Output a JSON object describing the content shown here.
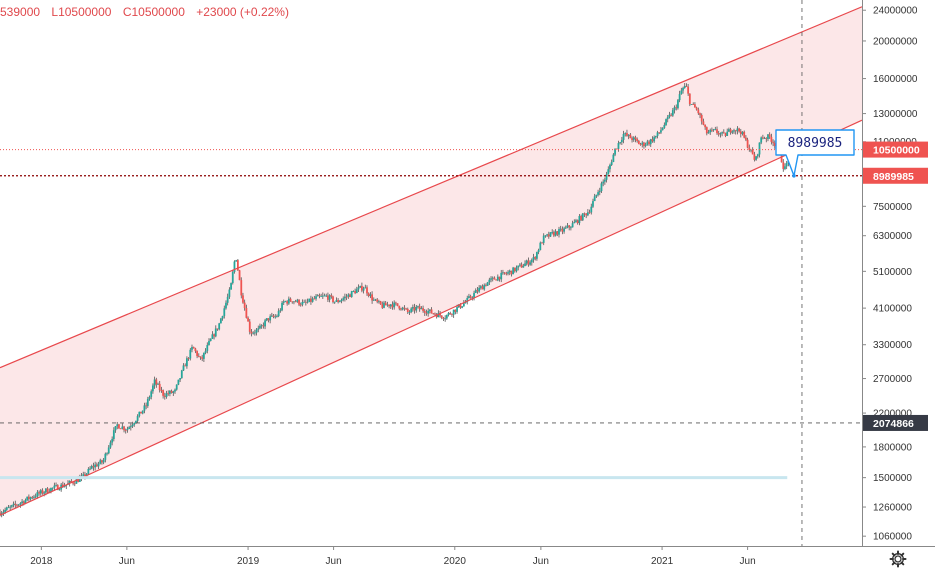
{
  "legend": {
    "open": "539000",
    "low": "L10500000",
    "close": "C10500000",
    "change": "+23000 (+0.22%)"
  },
  "callout": {
    "text": "8989985"
  },
  "icons": {
    "settings": "gear-icon"
  },
  "colors": {
    "channel_line": "#e8484c",
    "channel_fill": "#fbe3e4",
    "up_candle": "#26a69a",
    "down_candle": "#ef5350",
    "wick": "#555555",
    "price_tag": "#ef5350",
    "crosshair_tag": "#363a45",
    "callout_border": "#2196f3",
    "callout_text": "#1a237e",
    "support_line": "#c8e6ef"
  },
  "chart_data": {
    "type": "candlestick",
    "scale": "log",
    "y_ticks": [
      1060000,
      1260000,
      1500000,
      1800000,
      2200000,
      2700000,
      3300000,
      4100000,
      5100000,
      6300000,
      7500000,
      9000000,
      11000000,
      13000000,
      16000000,
      20000000,
      24000000
    ],
    "y_tick_labels": [
      "1060000",
      "1260000",
      "1500000",
      "1800000",
      "2200000",
      "2700000",
      "3300000",
      "4100000",
      "5100000",
      "6300000",
      "7500000",
      "9000000",
      "11000000",
      "13000000",
      "16000000",
      "20000000",
      "24000000"
    ],
    "x_ticks": [
      "2018-01-01",
      "2018-06-01",
      "2019-01-01",
      "2019-06-01",
      "2020-01-01",
      "2020-06-01",
      "2021-01-01",
      "2021-06-01"
    ],
    "x_tick_labels": [
      "2018",
      "Jun",
      "2019",
      "Jun",
      "2020",
      "Jun",
      "2021",
      "Jun"
    ],
    "y_range": [
      1000000,
      25500000
    ],
    "x_range": [
      "2017-10-20",
      "2021-12-20"
    ],
    "last_price": 10500000,
    "last_price_label": "10500000",
    "horizontal_level": 8989985,
    "horizontal_level_label": "8989985",
    "crosshair_y": 2074866,
    "crosshair_y_label": "2074866",
    "crosshair_x": "2021-09-05",
    "support_line": {
      "value": 1500000,
      "from": "2017-10-20",
      "to": "2021-08-10"
    },
    "channel": {
      "upper": [
        [
          "2017-10-20",
          2880000
        ],
        [
          "2021-12-20",
          24500000
        ]
      ],
      "lower": [
        [
          "2017-10-20",
          1200000
        ],
        [
          "2021-12-20",
          12500000
        ]
      ]
    },
    "price_path": [
      [
        "2017-10-20",
        1220000
      ],
      [
        "2017-11-15",
        1270000
      ],
      [
        "2017-12-15",
        1340000
      ],
      [
        "2018-01-15",
        1400000
      ],
      [
        "2018-02-15",
        1440000
      ],
      [
        "2018-03-15",
        1500000
      ],
      [
        "2018-04-01",
        1600000
      ],
      [
        "2018-04-20",
        1650000
      ],
      [
        "2018-05-05",
        1900000
      ],
      [
        "2018-05-15",
        2050000
      ],
      [
        "2018-06-01",
        2000000
      ],
      [
        "2018-06-20",
        2150000
      ],
      [
        "2018-07-05",
        2300000
      ],
      [
        "2018-07-20",
        2650000
      ],
      [
        "2018-08-05",
        2450000
      ],
      [
        "2018-08-25",
        2500000
      ],
      [
        "2018-09-10",
        2900000
      ],
      [
        "2018-09-25",
        3250000
      ],
      [
        "2018-10-10",
        3000000
      ],
      [
        "2018-10-25",
        3350000
      ],
      [
        "2018-11-10",
        3700000
      ],
      [
        "2018-11-20",
        4100000
      ],
      [
        "2018-12-01",
        4600000
      ],
      [
        "2018-12-10",
        5650000
      ],
      [
        "2018-12-20",
        4500000
      ],
      [
        "2019-01-05",
        3550000
      ],
      [
        "2019-01-20",
        3600000
      ],
      [
        "2019-02-05",
        3850000
      ],
      [
        "2019-02-20",
        3900000
      ],
      [
        "2019-03-05",
        4250000
      ],
      [
        "2019-03-20",
        4300000
      ],
      [
        "2019-04-10",
        4200000
      ],
      [
        "2019-05-01",
        4350000
      ],
      [
        "2019-05-20",
        4400000
      ],
      [
        "2019-06-05",
        4250000
      ],
      [
        "2019-06-25",
        4400000
      ],
      [
        "2019-07-10",
        4550000
      ],
      [
        "2019-07-25",
        4650000
      ],
      [
        "2019-08-10",
        4300000
      ],
      [
        "2019-08-25",
        4150000
      ],
      [
        "2019-09-10",
        4200000
      ],
      [
        "2019-09-25",
        4150000
      ],
      [
        "2019-10-10",
        4000000
      ],
      [
        "2019-10-25",
        4100000
      ],
      [
        "2019-11-10",
        4050000
      ],
      [
        "2019-11-20",
        4000000
      ],
      [
        "2019-12-01",
        3950000
      ],
      [
        "2019-12-15",
        3900000
      ],
      [
        "2019-12-31",
        4050000
      ],
      [
        "2020-01-20",
        4250000
      ],
      [
        "2020-02-10",
        4550000
      ],
      [
        "2020-03-01",
        4800000
      ],
      [
        "2020-03-20",
        4950000
      ],
      [
        "2020-04-10",
        5100000
      ],
      [
        "2020-05-01",
        5300000
      ],
      [
        "2020-05-20",
        5500000
      ],
      [
        "2020-06-05",
        6200000
      ],
      [
        "2020-06-25",
        6400000
      ],
      [
        "2020-07-10",
        6500000
      ],
      [
        "2020-07-25",
        6700000
      ],
      [
        "2020-08-10",
        7000000
      ],
      [
        "2020-08-25",
        7300000
      ],
      [
        "2020-09-10",
        8200000
      ],
      [
        "2020-09-25",
        9000000
      ],
      [
        "2020-10-10",
        10500000
      ],
      [
        "2020-10-25",
        11500000
      ],
      [
        "2020-11-10",
        11200000
      ],
      [
        "2020-11-25",
        10800000
      ],
      [
        "2020-12-10",
        11000000
      ],
      [
        "2020-12-25",
        11500000
      ],
      [
        "2021-01-10",
        12500000
      ],
      [
        "2021-01-25",
        13500000
      ],
      [
        "2021-02-05",
        15000000
      ],
      [
        "2021-02-12",
        15300000
      ],
      [
        "2021-02-20",
        13800000
      ],
      [
        "2021-03-05",
        13200000
      ],
      [
        "2021-03-20",
        11600000
      ],
      [
        "2021-04-05",
        11700000
      ],
      [
        "2021-04-20",
        11400000
      ],
      [
        "2021-05-05",
        11900000
      ],
      [
        "2021-05-20",
        11700000
      ],
      [
        "2021-06-01",
        10800000
      ],
      [
        "2021-06-15",
        9800000
      ],
      [
        "2021-06-25",
        11300000
      ],
      [
        "2021-07-10",
        11300000
      ],
      [
        "2021-07-25",
        10600000
      ],
      [
        "2021-08-05",
        9300000
      ],
      [
        "2021-08-15",
        10200000
      ],
      [
        "2021-09-01",
        10600000
      ],
      [
        "2021-09-15",
        11100000
      ],
      [
        "2021-10-01",
        10900000
      ],
      [
        "2021-10-20",
        10700000
      ],
      [
        "2021-11-05",
        10600000
      ],
      [
        "2021-11-20",
        10500000
      ]
    ]
  }
}
